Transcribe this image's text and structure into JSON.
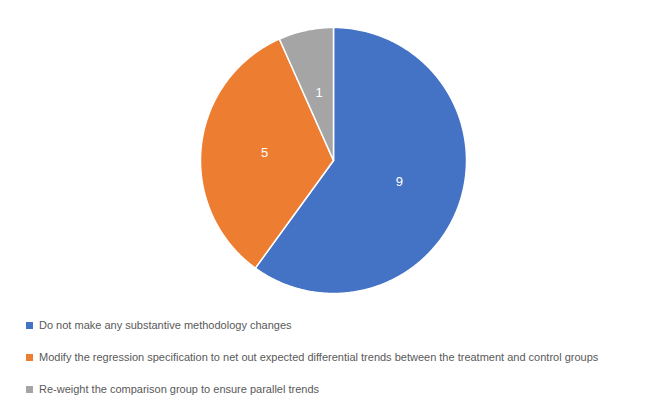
{
  "chart_data": {
    "type": "pie",
    "categories": [
      "Do not make any substantive methodology changes",
      "Modify the regression specification to net out expected differential trends between the treatment and control groups",
      "Re-weight the comparison group to ensure parallel trends"
    ],
    "values": [
      9,
      5,
      1
    ],
    "colors": [
      "#4472c4",
      "#ed7d31",
      "#a5a5a5"
    ],
    "data_labels": true,
    "legend": "bottom"
  }
}
